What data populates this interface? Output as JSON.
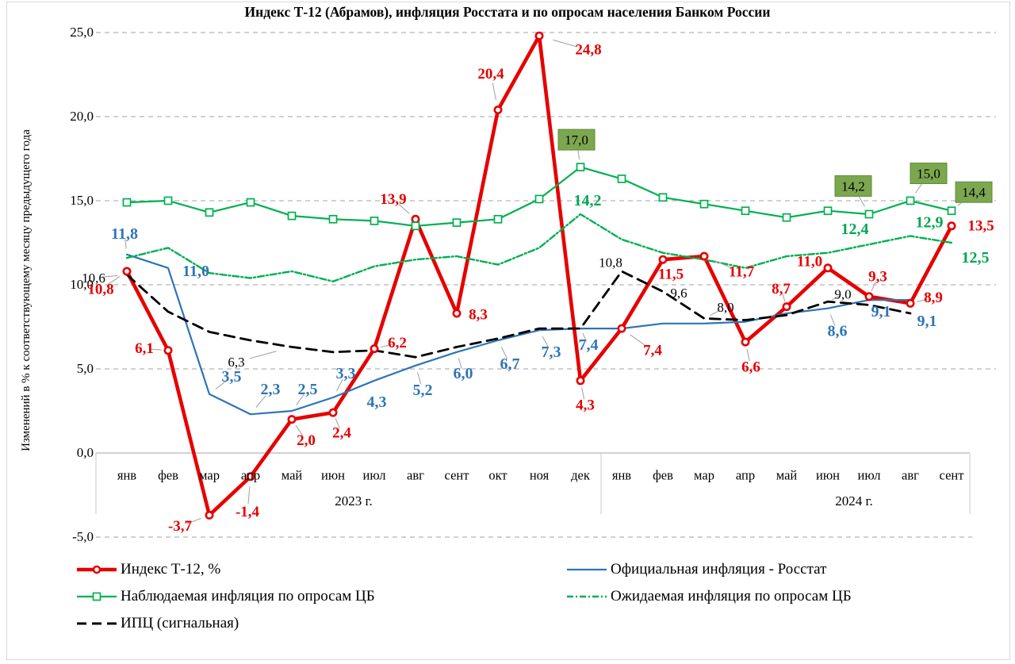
{
  "title": "Индекс Т-12 (Абрамов), инфляция Росстата и по опросам населения Банком России",
  "y_axis": {
    "title": "Изменений в % к соответствующему месяцу предыдущего года",
    "ticks": [
      {
        "label": "25,0",
        "value": 25
      },
      {
        "label": "20,0",
        "value": 20
      },
      {
        "label": "15,0",
        "value": 15
      },
      {
        "label": "10,0",
        "value": 10
      },
      {
        "label": "5,0",
        "value": 5
      },
      {
        "label": "0,0",
        "value": 0
      },
      {
        "label": "-5,0",
        "value": -5
      }
    ]
  },
  "x_axis": {
    "months_2023": [
      "янв",
      "фев",
      "мар",
      "апр",
      "май",
      "июн",
      "июл",
      "авг",
      "сент",
      "окт",
      "ноя",
      "дек"
    ],
    "months_2024": [
      "янв",
      "фев",
      "мар",
      "апр",
      "май",
      "июн",
      "июл",
      "авг",
      "сент"
    ],
    "year_2023": "2023 г.",
    "year_2024": "2024 г."
  },
  "colors": {
    "t12": "#e60000",
    "rosstat": "#2e75b6",
    "observed": "#00b050",
    "expected": "#00b050",
    "expected_label": "#00a651",
    "ipc": "#000000",
    "grid": "#a3a3a3",
    "zero_line": "#b7b7b7",
    "band_line": "#c9c9c9",
    "leader": "#a6a6a6",
    "box_fill": "#7ca74f",
    "box_border": "#5e8d3a",
    "box_text": "#000000"
  },
  "chart_data": {
    "type": "line",
    "ylim": [
      -5,
      25
    ],
    "grid": true,
    "legend_position": "bottom",
    "categories": [
      "янв 2023",
      "фев 2023",
      "мар 2023",
      "апр 2023",
      "май 2023",
      "июн 2023",
      "июл 2023",
      "авг 2023",
      "сент 2023",
      "окт 2023",
      "ноя 2023",
      "дек 2023",
      "янв 2024",
      "фев 2024",
      "мар 2024",
      "апр 2024",
      "май 2024",
      "июн 2024",
      "июл 2024",
      "авг 2024",
      "сент 2024"
    ],
    "series": [
      {
        "id": "t12",
        "name": "Индекс Т-12, %",
        "color": "#e60000",
        "style": "solid",
        "width": 4.6,
        "marker": "circle",
        "values": [
          10.8,
          6.1,
          -3.7,
          -1.4,
          2.0,
          2.4,
          6.2,
          13.9,
          8.3,
          20.4,
          24.8,
          4.3,
          7.4,
          11.5,
          11.7,
          6.6,
          8.7,
          11.0,
          9.3,
          8.9,
          13.5
        ],
        "labels": [
          {
            "i": 0,
            "t": "10,8",
            "dx": -33,
            "dy": 23,
            "lead": true
          },
          {
            "i": 1,
            "t": "6,1",
            "dx": -30,
            "dy": -2,
            "lead": true
          },
          {
            "i": 2,
            "t": "-3,7",
            "dx": -37,
            "dy": 14,
            "lead": true
          },
          {
            "i": 3,
            "t": "-1,4",
            "dx": -4,
            "dy": 45,
            "lead": true
          },
          {
            "i": 4,
            "t": "2,0",
            "dx": 18,
            "dy": 27,
            "lead": true
          },
          {
            "i": 5,
            "t": "2,4",
            "dx": 11,
            "dy": 26,
            "lead": true
          },
          {
            "i": 6,
            "t": "6,2",
            "dx": 29,
            "dy": -7,
            "lead": true
          },
          {
            "i": 7,
            "t": "13,9",
            "dx": -28,
            "dy": -25,
            "lead": true
          },
          {
            "i": 8,
            "t": "8,3",
            "dx": 27,
            "dy": 2,
            "lead": false
          },
          {
            "i": 9,
            "t": "20,4",
            "dx": -9,
            "dy": -45,
            "lead": true
          },
          {
            "i": 10,
            "t": "24,8",
            "dx": 62,
            "dy": 18,
            "lead": true
          },
          {
            "i": 11,
            "t": "4,3",
            "dx": 6,
            "dy": 31,
            "lead": true
          },
          {
            "i": 12,
            "t": "7,4",
            "dx": 39,
            "dy": 28,
            "lead": true
          },
          {
            "i": 13,
            "t": "11,5",
            "dx": 10,
            "dy": 19,
            "lead": false
          },
          {
            "i": 14,
            "t": "11,7",
            "dx": 47,
            "dy": 20,
            "lead": true
          },
          {
            "i": 15,
            "t": "6,6",
            "dx": 7,
            "dy": 32,
            "lead": true
          },
          {
            "i": 16,
            "t": "8,7",
            "dx": -7,
            "dy": -22,
            "lead": true
          },
          {
            "i": 17,
            "t": "11,0",
            "dx": -23,
            "dy": -8,
            "lead": false
          },
          {
            "i": 18,
            "t": "9,3",
            "dx": 11,
            "dy": -25,
            "lead": true
          },
          {
            "i": 19,
            "t": "8,9",
            "dx": 29,
            "dy": -7,
            "lead": true
          },
          {
            "i": 20,
            "t": "13,5",
            "dx": 37,
            "dy": 0,
            "lead": false
          }
        ]
      },
      {
        "id": "rosstat",
        "name": "Официальная инфляция - Росстат",
        "color": "#2e75b6",
        "style": "solid",
        "width": 2.2,
        "marker": "none",
        "values": [
          11.8,
          11.0,
          3.5,
          2.3,
          2.5,
          3.3,
          4.3,
          5.2,
          6.0,
          6.7,
          7.3,
          7.4,
          7.4,
          7.7,
          7.7,
          7.8,
          8.3,
          8.6,
          9.1,
          9.1,
          null
        ],
        "labels": [
          {
            "i": 0,
            "t": "11,8",
            "dx": -3,
            "dy": -26,
            "lead": true
          },
          {
            "i": 1,
            "t": "11,0",
            "dx": 35,
            "dy": 4,
            "lead": false
          },
          {
            "i": 2,
            "t": "3,5",
            "dx": 28,
            "dy": -22,
            "lead": true
          },
          {
            "i": 3,
            "t": "2,3",
            "dx": 25,
            "dy": -31,
            "lead": true
          },
          {
            "i": 4,
            "t": "2,5",
            "dx": 20,
            "dy": -27,
            "lead": true
          },
          {
            "i": 5,
            "t": "3,3",
            "dx": 16,
            "dy": -30,
            "lead": true
          },
          {
            "i": 6,
            "t": "4,3",
            "dx": 3,
            "dy": 27,
            "lead": false
          },
          {
            "i": 7,
            "t": "5,2",
            "dx": 9,
            "dy": 31,
            "lead": true
          },
          {
            "i": 8,
            "t": "6,0",
            "dx": 8,
            "dy": 27,
            "lead": true
          },
          {
            "i": 9,
            "t": "6,7",
            "dx": 15,
            "dy": 30,
            "lead": true
          },
          {
            "i": 10,
            "t": "7,3",
            "dx": 15,
            "dy": 28,
            "lead": true
          },
          {
            "i": 11,
            "t": "7,4",
            "dx": 10,
            "dy": 21,
            "lead": true
          },
          {
            "i": 17,
            "t": "8,6",
            "dx": 12,
            "dy": 29,
            "lead": true
          },
          {
            "i": 18,
            "t": "9,1",
            "dx": 15,
            "dy": 15,
            "lead": false
          },
          {
            "i": 19,
            "t": "9,1",
            "dx": 21,
            "dy": 27,
            "lead": false
          }
        ]
      },
      {
        "id": "observed",
        "name": "Наблюдаемая инфляция по опросам ЦБ",
        "color": "#00b050",
        "style": "solid",
        "width": 2.2,
        "marker": "square",
        "boxed_labels": true,
        "values": [
          14.9,
          15.0,
          14.3,
          14.9,
          14.1,
          13.9,
          13.8,
          13.5,
          13.7,
          13.9,
          15.1,
          17.0,
          16.3,
          15.2,
          14.8,
          14.4,
          14.0,
          14.4,
          14.2,
          15.0,
          14.4
        ],
        "labels": [
          {
            "i": 11,
            "t": "17,0",
            "dx": -5,
            "dy": -34,
            "lead": true
          },
          {
            "i": 18,
            "t": "14,2",
            "dx": -20,
            "dy": -35,
            "lead": true
          },
          {
            "i": 19,
            "t": "15,0",
            "dx": 23,
            "dy": -34,
            "lead": true
          },
          {
            "i": 20,
            "t": "14,4",
            "dx": 28,
            "dy": -23,
            "lead": true
          }
        ]
      },
      {
        "id": "expected",
        "name": "Ожидаемая инфляция по опросам ЦБ",
        "color": "#00b050",
        "style": "dashdot",
        "width": 2.4,
        "marker": "none",
        "dash": [
          8,
          3,
          2,
          3
        ],
        "values": [
          11.6,
          12.2,
          10.7,
          10.4,
          10.8,
          10.2,
          11.1,
          11.5,
          11.7,
          11.2,
          12.2,
          14.2,
          12.7,
          11.9,
          11.5,
          11.0,
          11.7,
          11.9,
          12.4,
          12.9,
          12.5
        ],
        "labels": [
          {
            "i": 11,
            "t": "14,2",
            "dx": 9,
            "dy": -17,
            "lead": false
          },
          {
            "i": 18,
            "t": "12,4",
            "dx": -18,
            "dy": -19,
            "lead": false
          },
          {
            "i": 19,
            "t": "12,9",
            "dx": 24,
            "dy": -17,
            "lead": false
          },
          {
            "i": 20,
            "t": "12,5",
            "dx": 30,
            "dy": 19,
            "lead": false
          }
        ]
      },
      {
        "id": "ipc",
        "name": "ИПЦ (сигнальная)",
        "color": "#000000",
        "style": "dashed",
        "width": 2.8,
        "marker": "none",
        "dash": [
          13,
          8
        ],
        "values": [
          10.6,
          8.4,
          7.2,
          6.7,
          6.3,
          6.0,
          6.1,
          5.7,
          6.3,
          6.8,
          7.4,
          7.4,
          10.8,
          9.6,
          8.0,
          7.9,
          8.2,
          9.0,
          8.8,
          8.3,
          null
        ],
        "labels": [
          {
            "i": 0,
            "t": "10,6",
            "dx": -42,
            "dy": 4,
            "lead": true
          },
          {
            "i": 4,
            "t": "6,3",
            "dx": -70,
            "dy": 19,
            "lead": true
          },
          {
            "i": 12,
            "t": "10,8",
            "dx": -14,
            "dy": -11,
            "lead": false
          },
          {
            "i": 13,
            "t": "9,6",
            "dx": 20,
            "dy": 2,
            "lead": false
          },
          {
            "i": 14,
            "t": "8,0",
            "dx": 27,
            "dy": -14,
            "lead": true
          },
          {
            "i": 17,
            "t": "9,0",
            "dx": 19,
            "dy": -9,
            "lead": true
          }
        ]
      }
    ]
  },
  "legend": {
    "items": [
      {
        "series": "t12",
        "label": "Индекс Т-12, %"
      },
      {
        "series": "rosstat",
        "label": "Официальная инфляция - Росстат"
      },
      {
        "series": "observed",
        "label": "Наблюдаемая  инфляция по опросам ЦБ"
      },
      {
        "series": "expected",
        "label": "Ожидаемая инфляция по опросам ЦБ"
      },
      {
        "series": "ipc",
        "label": "ИПЦ (сигнальная)"
      }
    ]
  }
}
